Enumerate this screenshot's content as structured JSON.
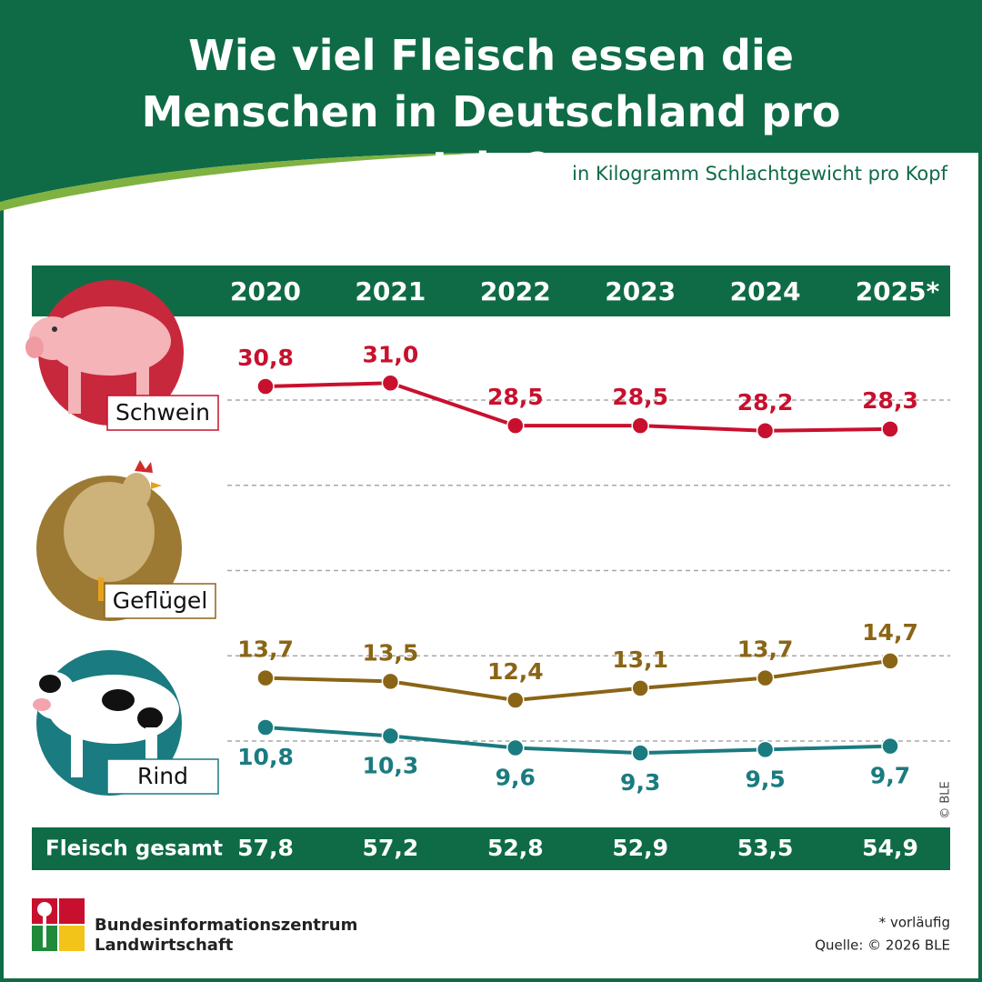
{
  "chart_data": {
    "type": "line",
    "title": "Wie viel Fleisch essen die Menschen in Deutschland pro Jahr?",
    "subtitle": "in Kilogramm Schlachtgewicht pro Kopf",
    "categories": [
      "2020",
      "2021",
      "2022",
      "2023",
      "2024",
      "2025*"
    ],
    "series": [
      {
        "name": "Schwein",
        "color": "#c8102e",
        "values": [
          30.8,
          31.0,
          28.5,
          28.5,
          28.2,
          28.3
        ],
        "value_labels": [
          "30,8",
          "31,0",
          "28,5",
          "28,5",
          "28,2",
          "28,3"
        ]
      },
      {
        "name": "Geflügel",
        "color": "#8a6516",
        "values": [
          13.7,
          13.5,
          12.4,
          13.1,
          13.7,
          14.7
        ],
        "value_labels": [
          "13,7",
          "13,5",
          "12,4",
          "13,1",
          "13,7",
          "14,7"
        ]
      },
      {
        "name": "Rind",
        "color": "#1a7b80",
        "values": [
          10.8,
          10.3,
          9.6,
          9.3,
          9.5,
          9.7
        ],
        "value_labels": [
          "10,8",
          "10,3",
          "9,6",
          "9,3",
          "9,5",
          "9,7"
        ]
      }
    ],
    "totals": {
      "name": "Fleisch gesamt",
      "values": [
        "57,8",
        "57,2",
        "52,8",
        "52,9",
        "53,5",
        "54,9"
      ]
    },
    "ylim": [
      6,
      34
    ],
    "yticks": [
      10,
      15,
      20,
      25,
      30
    ],
    "grid": true,
    "footnote": "* vorläufig",
    "source": "Quelle: © 2026 BLE",
    "copyright": "© BLE",
    "logo_lines": [
      "Bundesinformationszentrum",
      "Landwirtschaft"
    ]
  }
}
